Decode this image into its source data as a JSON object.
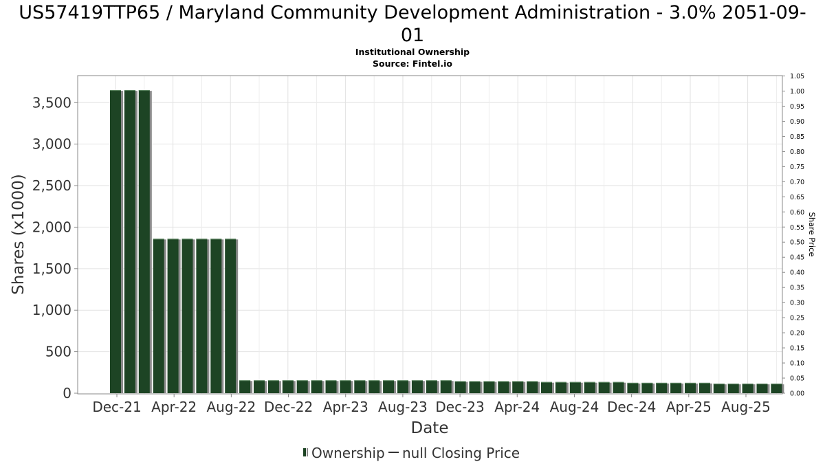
{
  "chart_data": {
    "type": "bar",
    "title_line1": "US57419TTP65 / Maryland Community Development Administration - 3.0% 2051-09-",
    "title_line2": "01",
    "subtitle": "Institutional Ownership",
    "source": "Source: Fintel.io",
    "xlabel": "Date",
    "ylabel": "Shares (x1000)",
    "y2label": "Share Price",
    "ylim": [
      0,
      3825
    ],
    "y_ticks": [
      {
        "value": 0,
        "label": "0"
      },
      {
        "value": 500,
        "label": "500"
      },
      {
        "value": 1000,
        "label": "1,000"
      },
      {
        "value": 1500,
        "label": "1,500"
      },
      {
        "value": 2000,
        "label": "2,000"
      },
      {
        "value": 2500,
        "label": "2,500"
      },
      {
        "value": 3000,
        "label": "3,000"
      },
      {
        "value": 3500,
        "label": "3,500"
      }
    ],
    "y2lim": [
      0,
      1.05
    ],
    "y2_ticks": [
      "0.00",
      "0.05",
      "0.10",
      "0.15",
      "0.20",
      "0.25",
      "0.30",
      "0.35",
      "0.40",
      "0.45",
      "0.50",
      "0.55",
      "0.60",
      "0.65",
      "0.70",
      "0.75",
      "0.80",
      "0.85",
      "0.90",
      "0.95",
      "1.00",
      "1.05"
    ],
    "x_ticks": [
      "Dec-21",
      "Apr-22",
      "Aug-22",
      "Dec-22",
      "Apr-23",
      "Aug-23",
      "Dec-23",
      "Apr-24",
      "Aug-24",
      "Dec-24",
      "Apr-25",
      "Aug-25"
    ],
    "series": [
      {
        "name": "Ownership",
        "color": "#1d4424",
        "values": [
          3650,
          3650,
          3650,
          1860,
          1860,
          1860,
          1860,
          1860,
          1860,
          155,
          155,
          155,
          155,
          155,
          155,
          155,
          155,
          155,
          155,
          155,
          155,
          155,
          155,
          155,
          145,
          145,
          145,
          145,
          145,
          145,
          135,
          135,
          135,
          135,
          135,
          135,
          125,
          125,
          125,
          125,
          125,
          125,
          115,
          115,
          115,
          115,
          115
        ]
      },
      {
        "name": "null Closing Price",
        "color": "#1d4424",
        "values": []
      }
    ],
    "grid": true,
    "legend_position": "bottom-center"
  }
}
